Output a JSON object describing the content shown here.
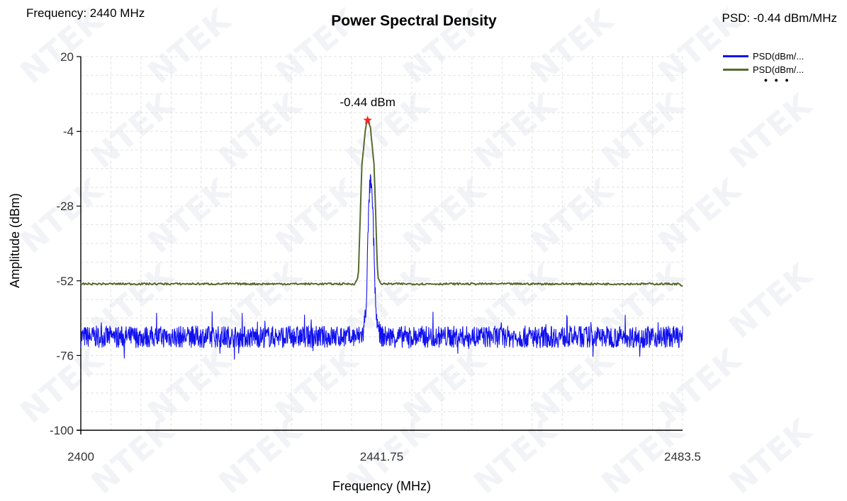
{
  "header": {
    "frequency_readout": "Frequency: 2440 MHz",
    "psd_readout": "PSD: -0.44 dBm/MHz"
  },
  "chart_data": {
    "type": "line",
    "title": "Power Spectral Density",
    "xlabel": "Frequency (MHz)",
    "ylabel": "Amplitude (dBm)",
    "xlim": [
      2400,
      2483.5
    ],
    "ylim": [
      -100,
      20
    ],
    "x_ticks": [
      "2400",
      "2441.75",
      "2483.5"
    ],
    "y_ticks": [
      "20",
      "-4",
      "-28",
      "-52",
      "-76",
      "-100"
    ],
    "grid": true,
    "legend_position": "top-right",
    "legend_overflow": "• • •",
    "series": [
      {
        "name": "PSD(dBm/...",
        "color": "#1010f0",
        "points": [
          [
            2400,
            -70
          ],
          [
            2438.5,
            -70
          ],
          [
            2439.2,
            -69
          ],
          [
            2439.6,
            -60
          ],
          [
            2440,
            -25
          ],
          [
            2440.2,
            -20
          ],
          [
            2440.5,
            -28
          ],
          [
            2440.9,
            -60
          ],
          [
            2441.3,
            -69
          ],
          [
            2442,
            -70
          ],
          [
            2483.5,
            -70
          ]
        ],
        "noise_band": 3.5
      },
      {
        "name": "PSD(dBm/...",
        "color": "#556b2f",
        "points": [
          [
            2400,
            -53
          ],
          [
            2438,
            -53
          ],
          [
            2438.5,
            -51
          ],
          [
            2439,
            -15
          ],
          [
            2439.5,
            -3
          ],
          [
            2439.8,
            -0.44
          ],
          [
            2440.2,
            -3
          ],
          [
            2440.7,
            -15
          ],
          [
            2441.2,
            -51
          ],
          [
            2441.7,
            -53
          ],
          [
            2483,
            -53
          ],
          [
            2483.5,
            -54
          ]
        ],
        "noise_band": 0.3
      }
    ],
    "peak_marker": {
      "x": 2439.8,
      "y": -0.44,
      "label": "-0.44 dBm",
      "color": "#ff2020"
    }
  },
  "watermark": "NTEK"
}
